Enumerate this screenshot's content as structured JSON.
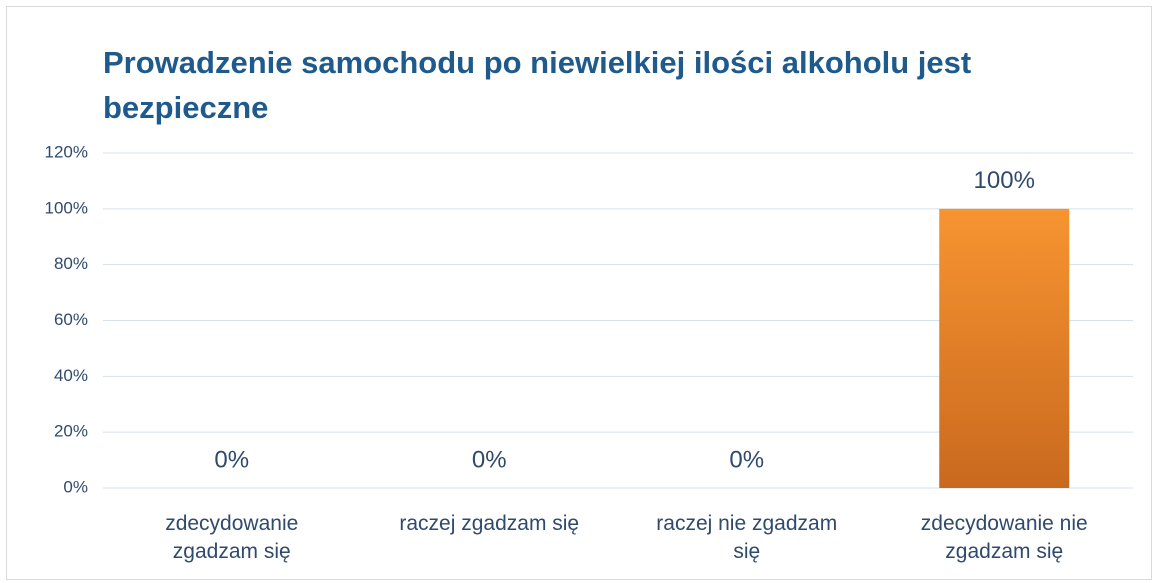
{
  "chart_data": {
    "type": "bar",
    "title": "Prowadzenie samochodu po niewielkiej ilości alkoholu jest bezpieczne",
    "categories": [
      "zdecydowanie zgadzam się",
      "raczej zgadzam się",
      "raczej nie zgadzam się",
      "zdecydowanie nie zgadzam się"
    ],
    "values": [
      0,
      0,
      0,
      100
    ],
    "value_labels": [
      "0%",
      "0%",
      "0%",
      "100%"
    ],
    "color": "#f79431",
    "ylim": [
      0,
      120
    ],
    "yticks": [
      {
        "value": 0,
        "label": "0%"
      },
      {
        "value": 20,
        "label": "20%"
      },
      {
        "value": 40,
        "label": "40%"
      },
      {
        "value": 60,
        "label": "60%"
      },
      {
        "value": 80,
        "label": "80%"
      },
      {
        "value": 100,
        "label": "100%"
      },
      {
        "value": 120,
        "label": "120%"
      }
    ],
    "grid": true
  }
}
